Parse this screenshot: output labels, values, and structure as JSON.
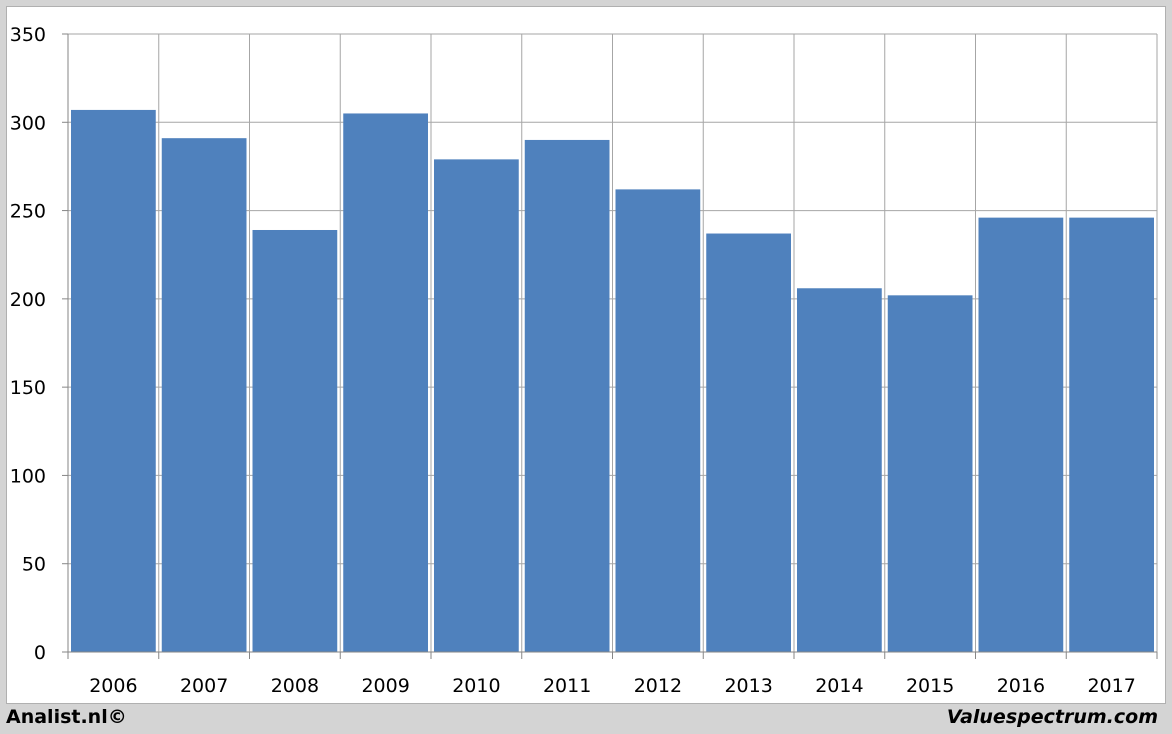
{
  "footer": {
    "left_text": "Analist.nl©",
    "right_text": "Valuespectrum.com"
  },
  "colors": {
    "bar": "#4f81bd",
    "grid": "#a6a6a6",
    "axis": "#868686",
    "background": "#ffffff"
  },
  "chart_data": {
    "type": "bar",
    "categories": [
      "2006",
      "2007",
      "2008",
      "2009",
      "2010",
      "2011",
      "2012",
      "2013",
      "2014",
      "2015",
      "2016",
      "2017"
    ],
    "values": [
      307,
      291,
      239,
      305,
      279,
      290,
      262,
      237,
      206,
      202,
      246,
      246
    ],
    "yticks": [
      "0",
      "50",
      "100",
      "150",
      "200",
      "250",
      "300",
      "350"
    ],
    "ylim": [
      0,
      350
    ],
    "grid": true,
    "legend": "none"
  }
}
